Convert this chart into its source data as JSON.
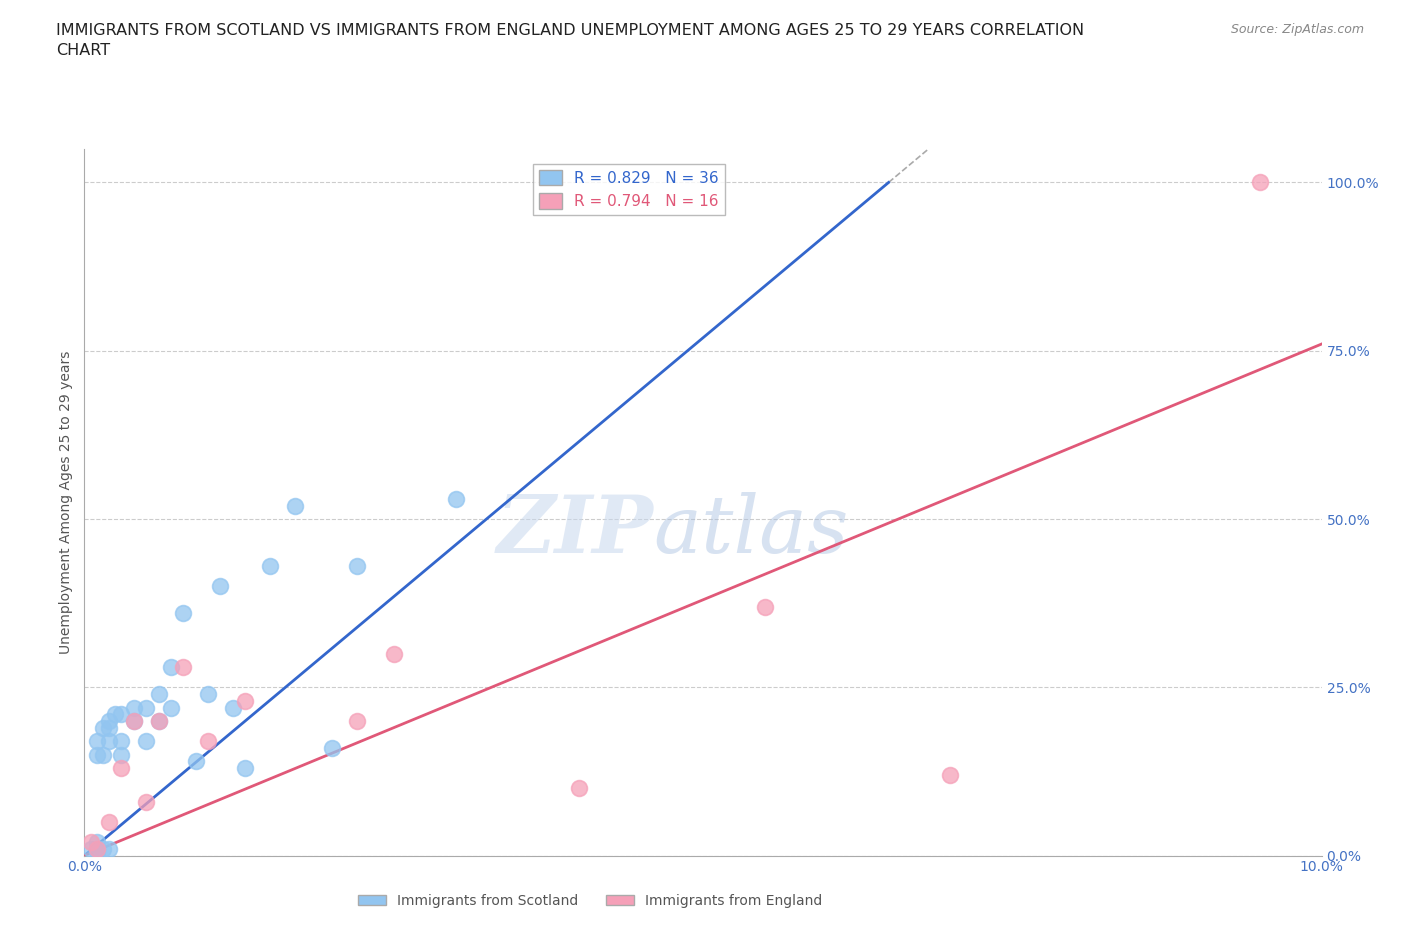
{
  "title": "IMMIGRANTS FROM SCOTLAND VS IMMIGRANTS FROM ENGLAND UNEMPLOYMENT AMONG AGES 25 TO 29 YEARS CORRELATION\nCHART",
  "source": "Source: ZipAtlas.com",
  "ylabel": "Unemployment Among Ages 25 to 29 years",
  "xlim": [
    0.0,
    0.1
  ],
  "ylim": [
    0.0,
    1.05
  ],
  "yticks": [
    0.0,
    0.25,
    0.5,
    0.75,
    1.0
  ],
  "ytick_labels": [
    "0.0%",
    "25.0%",
    "50.0%",
    "75.0%",
    "100.0%"
  ],
  "xticks": [
    0.0,
    0.02,
    0.04,
    0.06,
    0.08,
    0.1
  ],
  "xtick_labels": [
    "0.0%",
    "",
    "",
    "",
    "",
    "10.0%"
  ],
  "scotland_color": "#92C5F0",
  "england_color": "#F5A0B8",
  "scotland_R": 0.829,
  "scotland_N": 36,
  "england_R": 0.794,
  "england_N": 16,
  "scotland_line_color": "#3366CC",
  "england_line_color": "#E05878",
  "grid_color": "#CCCCCC",
  "scotland_line_x": [
    0.0,
    0.065
  ],
  "scotland_line_y": [
    0.0,
    1.0
  ],
  "england_line_x": [
    0.0,
    0.1
  ],
  "england_line_y": [
    0.0,
    0.76
  ],
  "scotland_x": [
    0.0005,
    0.001,
    0.001,
    0.001,
    0.001,
    0.001,
    0.0015,
    0.0015,
    0.0015,
    0.002,
    0.002,
    0.002,
    0.002,
    0.0025,
    0.003,
    0.003,
    0.003,
    0.004,
    0.004,
    0.005,
    0.005,
    0.006,
    0.006,
    0.007,
    0.007,
    0.008,
    0.009,
    0.01,
    0.011,
    0.012,
    0.013,
    0.015,
    0.017,
    0.02,
    0.022,
    0.03
  ],
  "scotland_y": [
    0.01,
    0.005,
    0.01,
    0.02,
    0.15,
    0.17,
    0.01,
    0.15,
    0.19,
    0.01,
    0.17,
    0.19,
    0.2,
    0.21,
    0.15,
    0.17,
    0.21,
    0.2,
    0.22,
    0.17,
    0.22,
    0.2,
    0.24,
    0.22,
    0.28,
    0.36,
    0.14,
    0.24,
    0.4,
    0.22,
    0.13,
    0.43,
    0.52,
    0.16,
    0.43,
    0.53
  ],
  "england_x": [
    0.0005,
    0.001,
    0.002,
    0.003,
    0.004,
    0.005,
    0.006,
    0.008,
    0.01,
    0.013,
    0.022,
    0.025,
    0.04,
    0.055,
    0.07,
    0.095
  ],
  "england_y": [
    0.02,
    0.01,
    0.05,
    0.13,
    0.2,
    0.08,
    0.2,
    0.28,
    0.17,
    0.23,
    0.2,
    0.3,
    0.1,
    0.37,
    0.12,
    1.0
  ],
  "background_color": "#FFFFFF",
  "axis_tick_color": "#4472C4",
  "title_color": "#222222",
  "title_fontsize": 11.5,
  "axis_label_fontsize": 10,
  "tick_fontsize": 10
}
